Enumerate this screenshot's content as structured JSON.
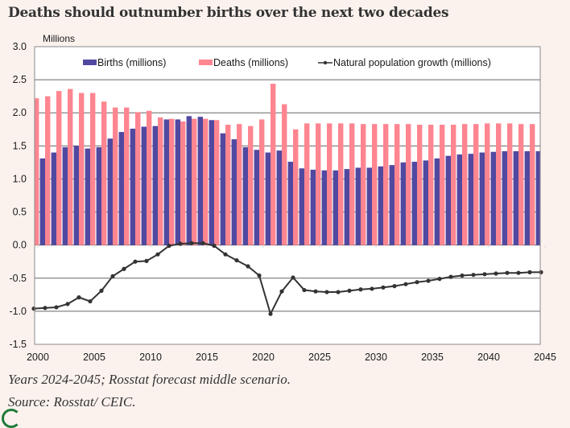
{
  "title": "Deaths should outnumber births over the next two decades",
  "notes": {
    "line1": "Years 2024-2045; Rosstat forecast middle scenario.",
    "line2": "Source: Rosstat/ CEIC."
  },
  "chart_data": {
    "type": "bar+line",
    "title": "Deaths should outnumber births over the next two decades",
    "ylabel": "Millions",
    "xlabel": "",
    "ylim": [
      -1.5,
      3.0
    ],
    "yticks": [
      3.0,
      2.5,
      2.0,
      1.5,
      1.0,
      0.5,
      0.0,
      -0.5,
      -1.0,
      -1.5
    ],
    "ytick_labels": [
      "3.0",
      "2.5",
      "2.0",
      "1.5",
      "1.0",
      "0.5",
      "0.0",
      "-0.5",
      "-1.0",
      "-1.5"
    ],
    "xticks": [
      "2000",
      "2005",
      "2010",
      "2015",
      "2020",
      "2025",
      "2030",
      "2035",
      "2040",
      "2045"
    ],
    "grid": true,
    "legend_position": "top-center",
    "colors": {
      "births": "#5148a0",
      "deaths": "#ff8590",
      "growth": "#333333"
    },
    "x": [
      2000,
      2001,
      2002,
      2003,
      2004,
      2005,
      2006,
      2007,
      2008,
      2009,
      2010,
      2011,
      2012,
      2013,
      2014,
      2015,
      2016,
      2017,
      2018,
      2019,
      2020,
      2021,
      2022,
      2023,
      2024,
      2025,
      2026,
      2027,
      2028,
      2029,
      2030,
      2031,
      2032,
      2033,
      2034,
      2035,
      2036,
      2037,
      2038,
      2039,
      2040,
      2041,
      2042,
      2043,
      2044,
      2045
    ],
    "series": [
      {
        "name": "Births (millions)",
        "type": "bar",
        "values": [
          null,
          1.31,
          1.4,
          1.48,
          1.5,
          1.46,
          1.48,
          1.61,
          1.71,
          1.76,
          1.79,
          1.8,
          1.9,
          1.9,
          1.95,
          1.94,
          1.89,
          1.69,
          1.6,
          1.48,
          1.44,
          1.4,
          1.43,
          1.26,
          1.16,
          1.14,
          1.13,
          1.13,
          1.15,
          1.17,
          1.17,
          1.19,
          1.21,
          1.25,
          1.26,
          1.28,
          1.31,
          1.35,
          1.37,
          1.38,
          1.4,
          1.41,
          1.42,
          1.42,
          1.42,
          1.42
        ]
      },
      {
        "name": "Deaths (millions)",
        "type": "bar",
        "values": [
          2.22,
          2.25,
          2.33,
          2.36,
          2.3,
          2.3,
          2.17,
          2.08,
          2.08,
          2.01,
          2.03,
          1.93,
          1.91,
          1.87,
          1.91,
          1.91,
          1.89,
          1.82,
          1.83,
          1.8,
          1.9,
          2.44,
          2.13,
          1.75,
          1.84,
          1.84,
          1.84,
          1.84,
          1.84,
          1.83,
          1.83,
          1.83,
          1.83,
          1.83,
          1.82,
          1.82,
          1.82,
          1.82,
          1.83,
          1.83,
          1.84,
          1.84,
          1.84,
          1.83,
          1.83,
          null
        ]
      },
      {
        "name": "Natural population growth (millions)",
        "type": "line",
        "values": [
          -0.96,
          -0.95,
          -0.94,
          -0.89,
          -0.79,
          -0.85,
          -0.69,
          -0.47,
          -0.36,
          -0.25,
          -0.24,
          -0.14,
          -0.01,
          0.02,
          0.03,
          0.03,
          -0.01,
          -0.14,
          -0.23,
          -0.32,
          -0.46,
          -1.04,
          -0.7,
          -0.49,
          -0.68,
          -0.7,
          -0.71,
          -0.71,
          -0.69,
          -0.67,
          -0.66,
          -0.64,
          -0.62,
          -0.59,
          -0.56,
          -0.54,
          -0.51,
          -0.48,
          -0.46,
          -0.45,
          -0.44,
          -0.43,
          -0.42,
          -0.42,
          -0.41,
          -0.41
        ]
      }
    ]
  }
}
